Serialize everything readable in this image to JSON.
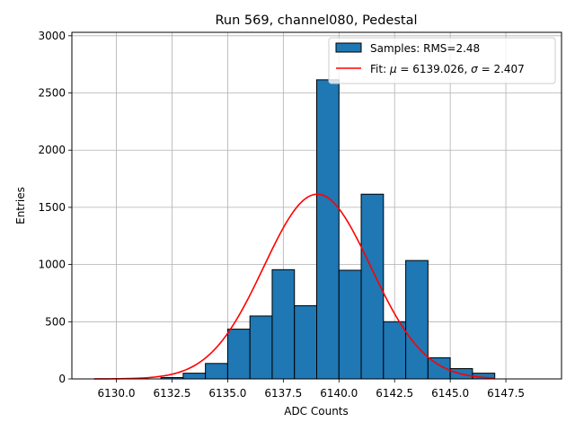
{
  "chart_data": {
    "type": "bar",
    "title": "Run 569, channel080, Pedestal",
    "xlabel": "ADC Counts",
    "ylabel": "Entries",
    "xlim": [
      6128.0,
      6150.0
    ],
    "ylim": [
      0,
      3030
    ],
    "xticks": [
      6130.0,
      6132.5,
      6135.0,
      6137.5,
      6140.0,
      6142.5,
      6145.0,
      6147.5
    ],
    "xtick_labels": [
      "6130.0",
      "6132.5",
      "6135.0",
      "6137.5",
      "6140.0",
      "6142.5",
      "6145.0",
      "6147.5"
    ],
    "yticks": [
      0,
      500,
      1000,
      1500,
      2000,
      2500,
      3000
    ],
    "ytick_labels": [
      "0",
      "500",
      "1000",
      "1500",
      "2000",
      "2500",
      "3000"
    ],
    "grid": true,
    "bin_width": 1.0,
    "histogram": {
      "name": "Samples: RMS=2.48",
      "color": "#1f77b4",
      "edgecolor": "#000000",
      "bin_left_edges": [
        6132,
        6133,
        6134,
        6135,
        6136,
        6137,
        6138,
        6139,
        6140,
        6141,
        6142,
        6143,
        6144,
        6145,
        6146
      ],
      "counts": [
        12,
        50,
        135,
        435,
        550,
        955,
        640,
        2615,
        950,
        1615,
        500,
        1035,
        185,
        90,
        50
      ]
    },
    "fit": {
      "name": "Fit: μ = 6139.026, σ = 2.407",
      "name_parts": [
        "Fit: ",
        "μ",
        " = 6139.026, ",
        "σ",
        " = 2.407"
      ],
      "color": "#ff0000",
      "mu": 6139.026,
      "sigma": 2.407,
      "amplitude": 1615,
      "x_range": [
        6129,
        6147
      ]
    },
    "legend": {
      "location": "top-right"
    }
  }
}
